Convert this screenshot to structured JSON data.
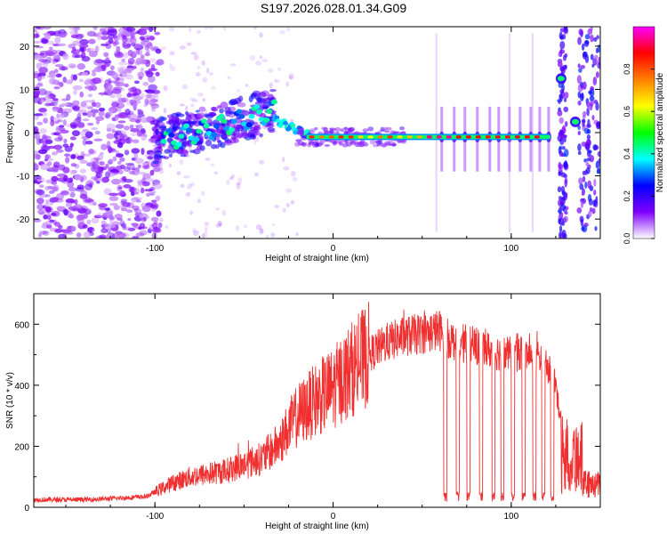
{
  "title": "S197.2026.028.01.34.G09",
  "chart_data": [
    {
      "type": "heatmap",
      "xlabel": "Height of straight line (km)",
      "ylabel": "Frequency (Hz)",
      "xlim": [
        -168,
        150
      ],
      "ylim": [
        -24.5,
        24.5
      ],
      "xticks": [
        -100,
        0,
        100
      ],
      "yticks": [
        -20,
        -10,
        0,
        10,
        20
      ],
      "colorbar": {
        "label": "Normalized spectral amplitude",
        "range": [
          0,
          1
        ],
        "ticks": [
          "0.0",
          "0.2",
          "0.4",
          "0.6",
          "0.8"
        ],
        "colormap": [
          "#ffffff",
          "#8000ff",
          "#0000ff",
          "#00ffff",
          "#00ff00",
          "#ffff00",
          "#ff8000",
          "#ff0000",
          "#ff00ff"
        ]
      },
      "features": {
        "noise_region_km": [
          -168,
          -100
        ],
        "dominant_line_hz": -1.0,
        "rising_tone_from": [
          -100,
          -1
        ],
        "rising_tone_to": [
          -33,
          5
        ],
        "steady_line_from_km": -15,
        "steady_line_to_km": 122,
        "gap_blobs": [
          {
            "x_km": 128,
            "f_hz": 12.5
          },
          {
            "x_km": 136,
            "f_hz": 2.5
          }
        ]
      }
    },
    {
      "type": "line",
      "xlabel": "Height of straight line (km)",
      "ylabel": "SNR (10 * v/v)",
      "xlim": [
        -168,
        150
      ],
      "ylim": [
        0,
        700
      ],
      "xticks": [
        -100,
        0,
        100
      ],
      "yticks": [
        0,
        200,
        400,
        600
      ],
      "color": "#f03030",
      "series": [
        {
          "name": "SNR",
          "x": [
            -168,
            -140,
            -120,
            -105,
            -100,
            -90,
            -80,
            -70,
            -60,
            -50,
            -40,
            -30,
            -25,
            -20,
            -10,
            0,
            10,
            20,
            30,
            40,
            50,
            60,
            62,
            70,
            80,
            90,
            100,
            110,
            118,
            125,
            130,
            140,
            150
          ],
          "y": [
            25,
            25,
            30,
            35,
            50,
            80,
            100,
            110,
            120,
            140,
            160,
            210,
            260,
            300,
            350,
            390,
            450,
            500,
            540,
            560,
            570,
            580,
            560,
            540,
            530,
            510,
            500,
            500,
            490,
            400,
            200,
            80,
            70
          ]
        }
      ],
      "dropouts_km": [
        63,
        70,
        76,
        83,
        90,
        95,
        101,
        107,
        113,
        118,
        123
      ]
    }
  ]
}
